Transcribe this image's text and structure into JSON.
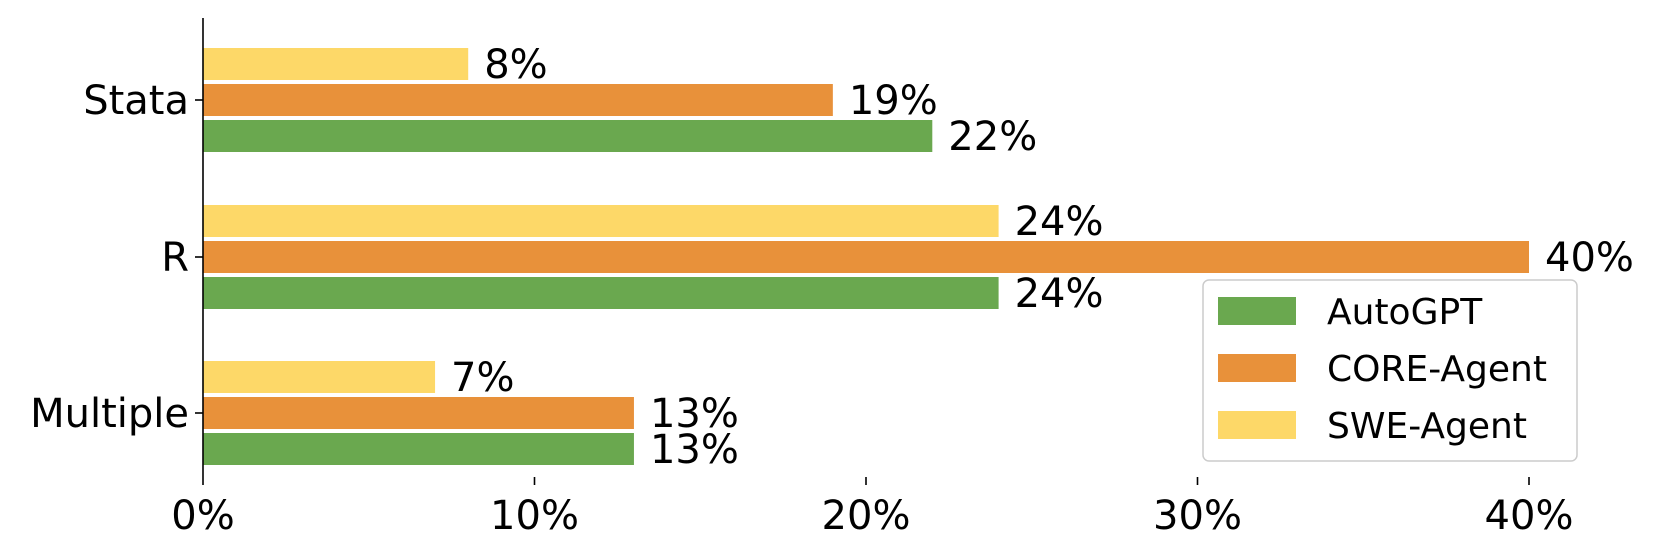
{
  "chart_data": {
    "type": "bar",
    "orientation": "horizontal",
    "categories": [
      "Stata",
      "R",
      "Multiple"
    ],
    "series": [
      {
        "name": "SWE-Agent",
        "color": "#FDD868",
        "values": [
          8,
          24,
          7
        ],
        "labels": [
          "8%",
          "24%",
          "7%"
        ]
      },
      {
        "name": "CORE-Agent",
        "color": "#E8913A",
        "values": [
          19,
          40,
          13
        ],
        "labels": [
          "19%",
          "40%",
          "13%"
        ]
      },
      {
        "name": "AutoGPT",
        "color": "#6AA84F",
        "values": [
          22,
          24,
          13
        ],
        "labels": [
          "22%",
          "24%",
          "13%"
        ]
      }
    ],
    "xlim": [
      0,
      40
    ],
    "xticks": [
      0,
      10,
      20,
      30,
      40
    ],
    "xtick_labels": [
      "0%",
      "10%",
      "20%",
      "30%",
      "40%"
    ],
    "title": "",
    "xlabel": "",
    "ylabel": "",
    "grid": false,
    "legend": {
      "placement": "bottom-right",
      "entries": [
        "AutoGPT",
        "CORE-Agent",
        "SWE-Agent"
      ]
    }
  }
}
